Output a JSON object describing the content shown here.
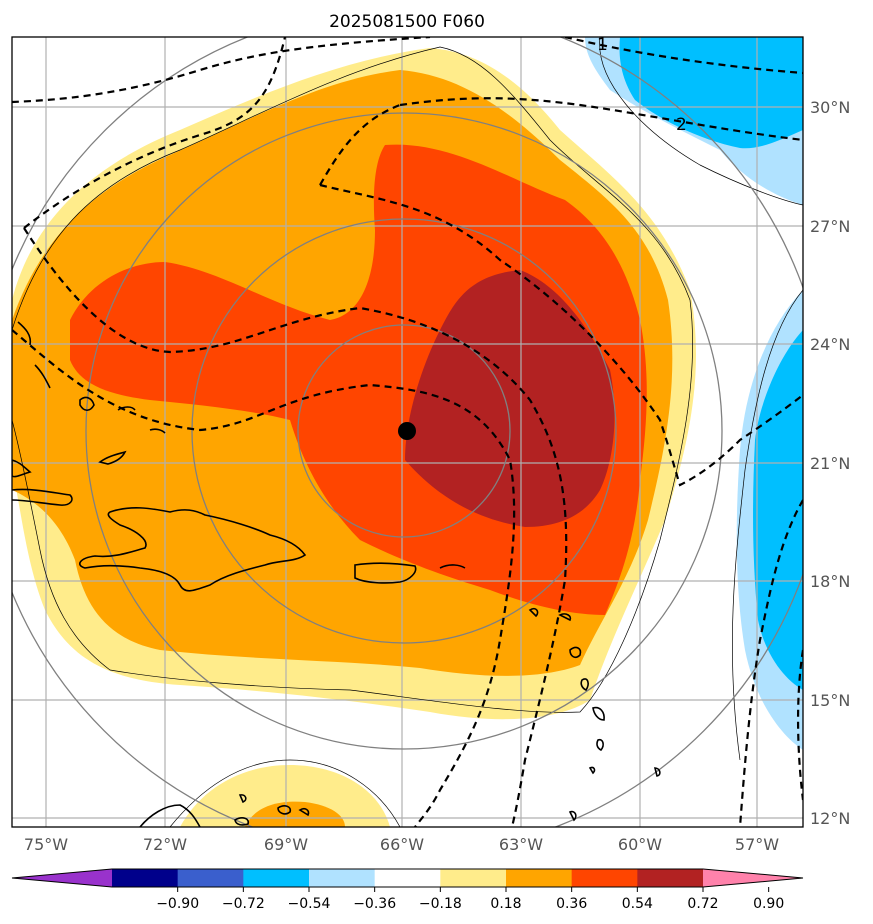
{
  "title": "2025081500 F060",
  "lon_ticks": [
    "75°W",
    "72°W",
    "69°W",
    "66°W",
    "63°W",
    "60°W",
    "57°W"
  ],
  "lat_ticks": [
    "30°N",
    "27°N",
    "24°N",
    "21°N",
    "18°N",
    "15°N",
    "12°N"
  ],
  "colorbar_ticks": [
    "−0.90",
    "−0.72",
    "−0.54",
    "−0.36",
    "−0.18",
    "0.18",
    "0.36",
    "0.54",
    "0.72",
    "0.90"
  ],
  "colorbar_colors": [
    "#9932cc",
    "#00008b",
    "#3a5fcd",
    "#00bfff",
    "#b0e2ff",
    "#ffffff",
    "#ffec8b",
    "#ffa500",
    "#ff4500",
    "#b22222",
    "#ff82ab"
  ],
  "contour_labels": [
    "1",
    "2"
  ],
  "center_marker": {
    "lon": -66,
    "lat": 21.8
  }
}
